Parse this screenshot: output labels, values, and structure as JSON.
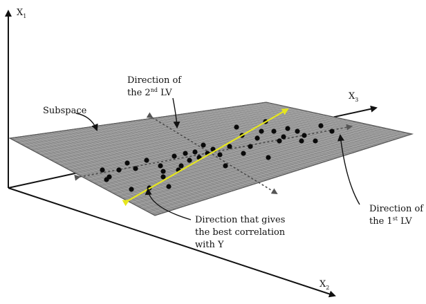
{
  "axes": {
    "x1": {
      "label": "X",
      "sub": "1"
    },
    "x2": {
      "label": "X",
      "sub": "2"
    },
    "x3": {
      "label": "X",
      "sub": "3"
    }
  },
  "labels": {
    "subspace": "Subspace",
    "lv2_line1": "Direction of",
    "lv2_line2_pre": "the 2",
    "lv2_line2_sup": "nd",
    "lv2_line2_post": " LV",
    "lv1_line1": "Direction of",
    "lv1_line2_pre": "the 1",
    "lv1_line2_sup": "st",
    "lv1_line2_post": " LV",
    "corr_line1": "Direction that gives",
    "corr_line2": "the best correlation",
    "corr_line3": "with Y"
  },
  "colors": {
    "plane_fill": "#8e8e8e",
    "plane_grid": "#b4b4b4",
    "plane_edge": "#555555",
    "points": "#0a0a0a",
    "lv_arrows": "#555555",
    "corr_arrow": "#e6e61e",
    "axes": "#111111"
  }
}
